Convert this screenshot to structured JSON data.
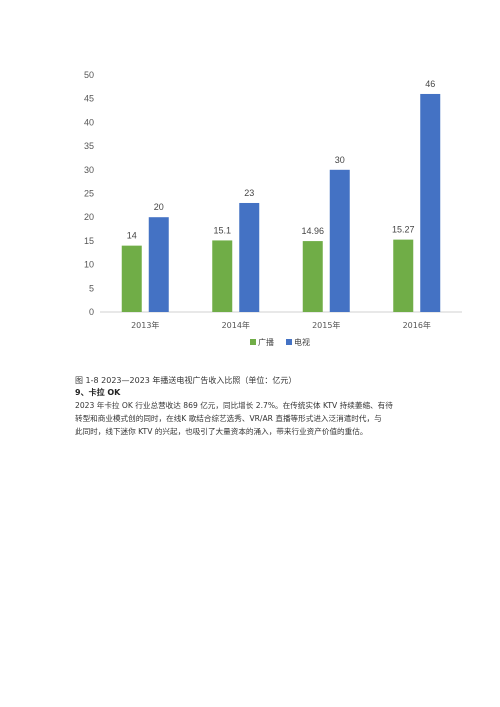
{
  "chart_data": {
    "type": "bar",
    "categories": [
      "2013年",
      "2014年",
      "2015年",
      "2016年"
    ],
    "series": [
      {
        "name": "广播",
        "values": [
          14,
          15.1,
          14.96,
          15.27
        ],
        "labels": [
          "14",
          "15.1",
          "14.96",
          "15.27"
        ],
        "color": "#70ad47"
      },
      {
        "name": "电视",
        "values": [
          20,
          23,
          30,
          46
        ],
        "labels": [
          "20",
          "23",
          "30",
          "46"
        ],
        "color": "#4472c4"
      }
    ],
    "yticks": [
      "0",
      "5",
      "10",
      "15",
      "20",
      "25",
      "30",
      "35",
      "40",
      "45",
      "50"
    ],
    "ylim": [
      0,
      50
    ],
    "grid": false,
    "legend_position": "bottom"
  },
  "caption": "图 1-8 2023—2023 年播送电视广告收入比照（单位：亿元）",
  "section": {
    "heading": "9、卡拉 OK",
    "lines": [
      "2023 年卡拉 OK 行业总营收达 869 亿元，同比增长 2.7%。在传统实体 KTV 持续萎缩、有待",
      "转型和商业模式创的同时，在线K 歌结合综艺选秀、VR/AR 直播等形式进入泛消遣时代，与",
      "此同时，线下迷你 KTV 的兴起，也吸引了大量资本的涌入，带来行业资产价值的重估。"
    ]
  }
}
